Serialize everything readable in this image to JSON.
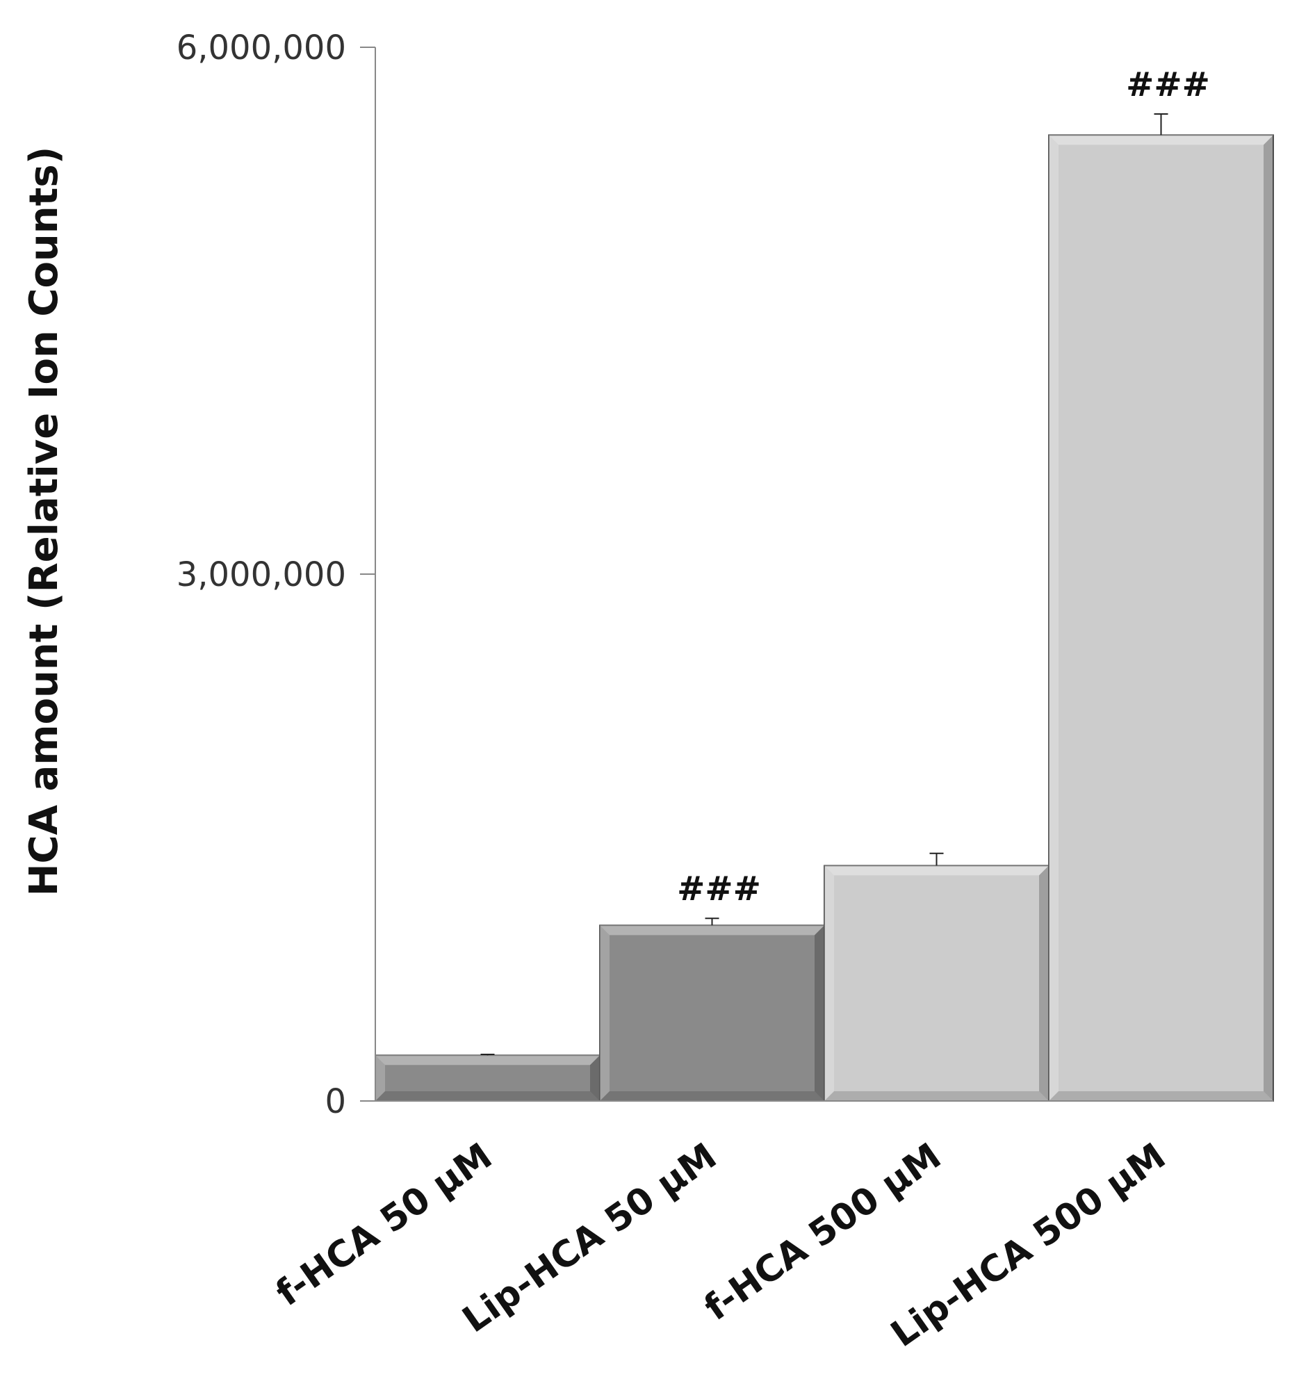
{
  "chart_data": {
    "type": "bar",
    "title": "",
    "xlabel": "",
    "ylabel": "HCA amount (Relative Ion Counts)",
    "ylim": [
      0,
      6000000
    ],
    "yticks": [
      0,
      3000000,
      6000000
    ],
    "ytick_labels": [
      "0",
      "3,000,000",
      "6,000,000"
    ],
    "categories": [
      "f-HCA 50 µM",
      "Lip-HCA 50 µM",
      "f-HCA 500 µM",
      "Lip-HCA 500 µM"
    ],
    "values": [
      260000,
      1000000,
      1340000,
      5500000
    ],
    "errors": [
      5000,
      40000,
      70000,
      120000
    ],
    "annotations": [
      "",
      "###",
      "",
      "###"
    ],
    "bar_colors": [
      "#8a8a8a",
      "#8a8a8a",
      "#cccccc",
      "#cccccc"
    ],
    "grid": false,
    "legend": "none"
  }
}
